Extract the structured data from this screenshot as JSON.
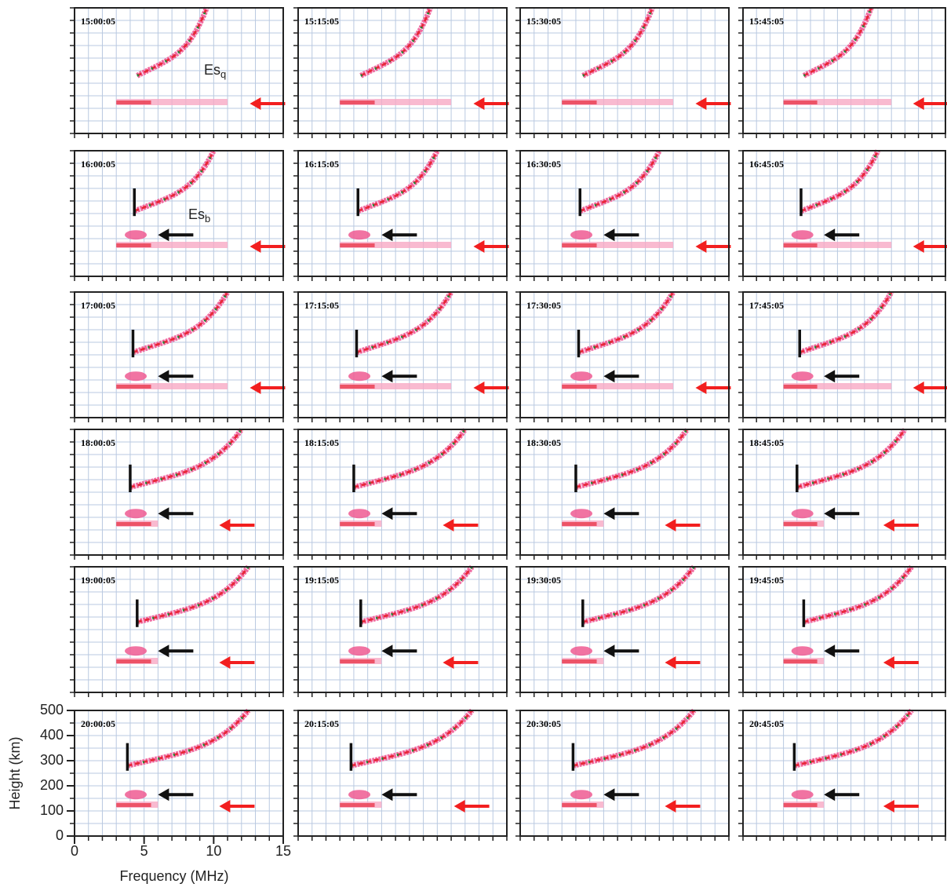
{
  "panels": [
    {
      "time": "15:00:05"
    },
    {
      "time": "15:15:05"
    },
    {
      "time": "15:30:05"
    },
    {
      "time": "15:45:05"
    },
    {
      "time": "16:00:05"
    },
    {
      "time": "16:15:05"
    },
    {
      "time": "16:30:05"
    },
    {
      "time": "16:45:05"
    },
    {
      "time": "17:00:05"
    },
    {
      "time": "17:15:05"
    },
    {
      "time": "17:30:05"
    },
    {
      "time": "17:45:05"
    },
    {
      "time": "18:00:05"
    },
    {
      "time": "18:15:05"
    },
    {
      "time": "18:30:05"
    },
    {
      "time": "18:45:05"
    },
    {
      "time": "19:00:05"
    },
    {
      "time": "19:15:05"
    },
    {
      "time": "19:30:05"
    },
    {
      "time": "19:45:05"
    },
    {
      "time": "20:00:05"
    },
    {
      "time": "20:15:05"
    },
    {
      "time": "20:30:05"
    },
    {
      "time": "20:45:05"
    }
  ],
  "annotations": {
    "es_q": {
      "base": "Es",
      "sub": "q"
    },
    "es_b": {
      "base": "Es",
      "sub": "b"
    }
  },
  "axes": {
    "xlabel": "Frequency (MHz)",
    "ylabel": "Height (km)",
    "xlim": [
      0,
      15
    ],
    "ylim": [
      0,
      500
    ],
    "xticks": [
      0,
      5,
      10,
      15
    ],
    "yticks": [
      0,
      100,
      200,
      300,
      400,
      500
    ]
  }
}
